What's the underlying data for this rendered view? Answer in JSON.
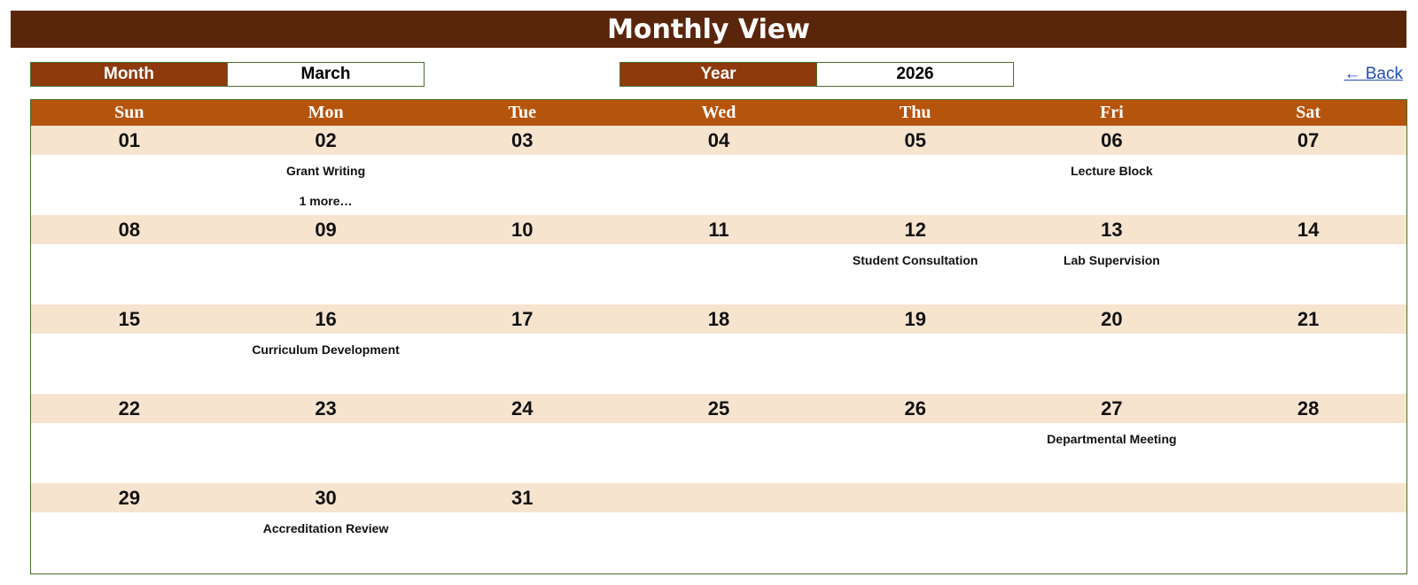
{
  "header": {
    "title": "Monthly View"
  },
  "controls": {
    "month_label": "Month",
    "month_value": "March",
    "year_label": "Year",
    "year_value": "2026",
    "back_link": "← Back"
  },
  "colors": {
    "title_bg": "#5a260b",
    "label_bg": "#8e3a0d",
    "weekday_bg": "#b5540c",
    "date_row_bg": "#f6e4cf",
    "border": "#4a6e2e",
    "link": "#1f4eb4"
  },
  "weekdays": [
    "Sun",
    "Mon",
    "Tue",
    "Wed",
    "Thu",
    "Fri",
    "Sat"
  ],
  "weeks": [
    {
      "dates": [
        "01",
        "02",
        "03",
        "04",
        "05",
        "06",
        "07"
      ],
      "events": [
        "",
        "Grant Writing",
        "",
        "",
        "",
        "Lecture Block",
        ""
      ],
      "more": [
        "",
        "1 more…",
        "",
        "",
        "",
        "",
        ""
      ]
    },
    {
      "dates": [
        "08",
        "09",
        "10",
        "11",
        "12",
        "13",
        "14"
      ],
      "events": [
        "",
        "",
        "",
        "",
        "Student Consultation",
        "Lab Supervision",
        ""
      ],
      "more": [
        "",
        "",
        "",
        "",
        "",
        "",
        ""
      ]
    },
    {
      "dates": [
        "15",
        "16",
        "17",
        "18",
        "19",
        "20",
        "21"
      ],
      "events": [
        "",
        "Curriculum Development",
        "",
        "",
        "",
        "",
        ""
      ],
      "more": [
        "",
        "",
        "",
        "",
        "",
        "",
        ""
      ]
    },
    {
      "dates": [
        "22",
        "23",
        "24",
        "25",
        "26",
        "27",
        "28"
      ],
      "events": [
        "",
        "",
        "",
        "",
        "",
        "Departmental Meeting",
        ""
      ],
      "more": [
        "",
        "",
        "",
        "",
        "",
        "",
        ""
      ]
    },
    {
      "dates": [
        "29",
        "30",
        "31",
        "",
        "",
        "",
        ""
      ],
      "events": [
        "",
        "Accreditation Review",
        "",
        "",
        "",
        "",
        ""
      ],
      "more": [
        "",
        "",
        "",
        "",
        "",
        "",
        ""
      ]
    }
  ]
}
